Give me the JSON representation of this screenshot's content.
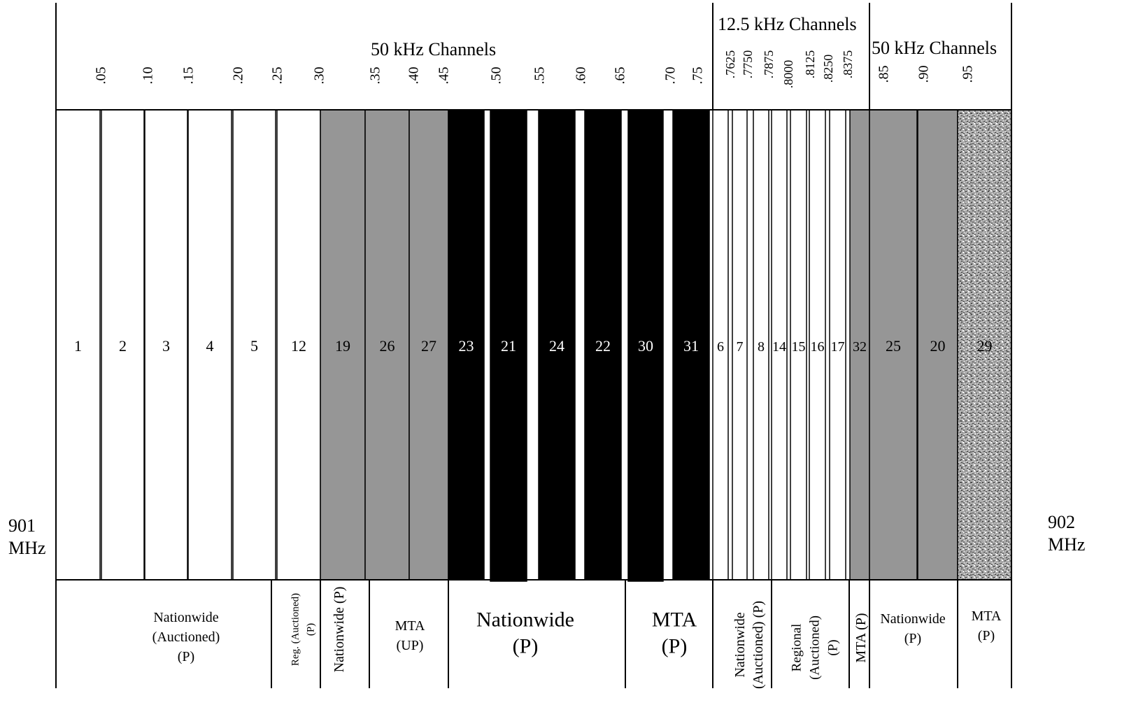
{
  "headers": {
    "left_50k": "50 kHz Channels",
    "mid_12k5": "12.5 kHz Channels",
    "right_50k": "50 kHz Channels"
  },
  "edge_labels": {
    "left": [
      "901",
      "MHz"
    ],
    "right": [
      "902",
      "MHz"
    ]
  },
  "ticks": {
    "left_50k": [
      ".05",
      ".10",
      ".15",
      ".20",
      ".25",
      ".30",
      ".35",
      ".40",
      ".45",
      ".50",
      ".55",
      ".60",
      ".65",
      ".70",
      ".75"
    ],
    "mid_12k5": [
      ".7625",
      ".7750",
      ".7875",
      ".8000",
      ".8125",
      ".8250",
      ".8375"
    ],
    "right_50k": [
      ".85",
      ".90",
      ".95"
    ]
  },
  "channels": [
    {
      "label": "1",
      "fill": "white"
    },
    {
      "label": "2",
      "fill": "white"
    },
    {
      "label": "3",
      "fill": "white"
    },
    {
      "label": "4",
      "fill": "white"
    },
    {
      "label": "5",
      "fill": "white"
    },
    {
      "label": "12",
      "fill": "white"
    },
    {
      "label": "19",
      "fill": "gray"
    },
    {
      "label": "26",
      "fill": "gray"
    },
    {
      "label": "27",
      "fill": "gray"
    },
    {
      "label": "23",
      "fill": "black"
    },
    {
      "label": "21",
      "fill": "black"
    },
    {
      "label": "24",
      "fill": "black"
    },
    {
      "label": "22",
      "fill": "black"
    },
    {
      "label": "30",
      "fill": "black"
    },
    {
      "label": "31",
      "fill": "black"
    },
    {
      "label": "6",
      "fill": "white"
    },
    {
      "label": "7",
      "fill": "white"
    },
    {
      "label": "8",
      "fill": "white"
    },
    {
      "label": "14",
      "fill": "white"
    },
    {
      "label": "15",
      "fill": "white"
    },
    {
      "label": "16",
      "fill": "white"
    },
    {
      "label": "17",
      "fill": "white"
    },
    {
      "label": "32",
      "fill": "gray"
    },
    {
      "label": "25",
      "fill": "gray"
    },
    {
      "label": "20",
      "fill": "gray"
    },
    {
      "label": "29",
      "fill": "speckled"
    }
  ],
  "groups": [
    {
      "lines": [
        "Nationwide",
        "(Auctioned)",
        "(P)"
      ]
    },
    {
      "lines": [
        "Reg. (Auctioned)",
        "(P)"
      ]
    },
    {
      "lines": [
        "Nationwide (P)"
      ]
    },
    {
      "lines": [
        "MTA",
        "(UP)"
      ]
    },
    {
      "lines": [
        "Nationwide",
        "(P)"
      ]
    },
    {
      "lines": [
        "MTA",
        "(P)"
      ]
    },
    {
      "lines": [
        "Nationwide",
        "(Auctioned) (P)"
      ]
    },
    {
      "lines": [
        "Regional",
        "(Auctioned)",
        "(P)"
      ]
    },
    {
      "lines": [
        "MTA (P)"
      ]
    },
    {
      "lines": [
        "Nationwide",
        "(P)"
      ]
    },
    {
      "lines": [
        "MTA",
        "(P)"
      ]
    }
  ],
  "colors": {
    "white": "#ffffff",
    "gray": "#969696",
    "black": "#000000",
    "speckled_base": "#a8a8a8",
    "line": "#000000"
  }
}
